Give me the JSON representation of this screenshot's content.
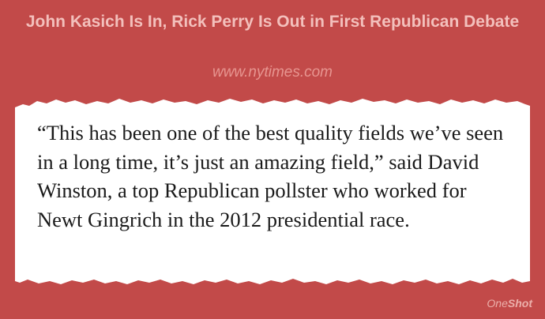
{
  "card": {
    "headline": "John Kasich Is In, Rick Perry Is Out in First Republican Debate",
    "source": "www.nytimes.com",
    "quote": "“This has been one of the best quality fields we’ve seen in a long time, it’s just an amazing field,” said David Winston, a top Republican pollster who worked for Newt Gingrich in the 2012 presidential race."
  },
  "brand": {
    "part1": "One",
    "part2": "Shot"
  },
  "colors": {
    "background": "#c24a49",
    "headline": "#f3c0bc",
    "source": "#e79590",
    "paper": "#ffffff",
    "quote_text": "#1a1a1a",
    "brand": "#ecb0ab"
  }
}
